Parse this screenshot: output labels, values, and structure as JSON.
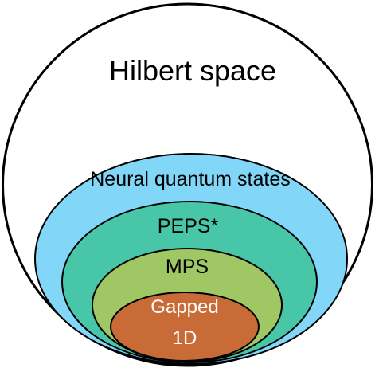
{
  "diagram": {
    "regions": [
      {
        "key": "hilbert",
        "label_lines": [
          "Hilbert space"
        ],
        "fill": "#ffffff",
        "stroke": "#000000"
      },
      {
        "key": "nqs",
        "label_lines": [
          "Neural quantum states"
        ],
        "fill": "#82d6f8",
        "stroke": "#000000"
      },
      {
        "key": "peps",
        "label_lines": [
          "PEPS*"
        ],
        "fill": "#47c6a8",
        "stroke": "#000000"
      },
      {
        "key": "mps",
        "label_lines": [
          "MPS"
        ],
        "fill": "#9fc763",
        "stroke": "#000000"
      },
      {
        "key": "gapped",
        "label_lines": [
          "Gapped",
          "1D"
        ],
        "fill": "#c96b37",
        "stroke": "#000000",
        "text_color": "#ffffff"
      }
    ]
  }
}
